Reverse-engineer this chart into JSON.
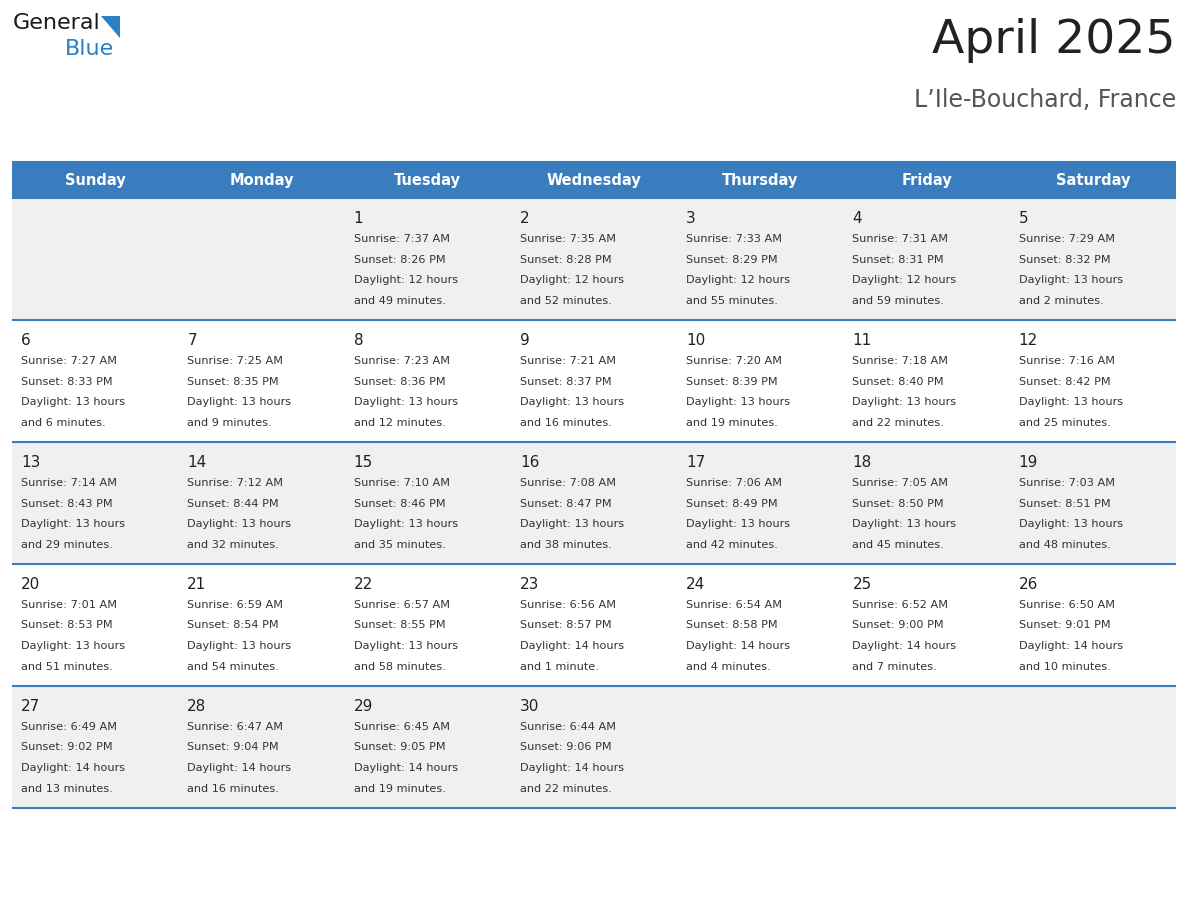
{
  "title": "April 2025",
  "subtitle": "L’Ile-Bouchard, France",
  "header_bg": "#3a7dbf",
  "header_text_color": "#ffffff",
  "day_names": [
    "Sunday",
    "Monday",
    "Tuesday",
    "Wednesday",
    "Thursday",
    "Friday",
    "Saturday"
  ],
  "weeks": [
    [
      {
        "day": "",
        "sunrise": "",
        "sunset": "",
        "daylight": ""
      },
      {
        "day": "",
        "sunrise": "",
        "sunset": "",
        "daylight": ""
      },
      {
        "day": "1",
        "sunrise": "7:37 AM",
        "sunset": "8:26 PM",
        "daylight": "12 hours\nand 49 minutes."
      },
      {
        "day": "2",
        "sunrise": "7:35 AM",
        "sunset": "8:28 PM",
        "daylight": "12 hours\nand 52 minutes."
      },
      {
        "day": "3",
        "sunrise": "7:33 AM",
        "sunset": "8:29 PM",
        "daylight": "12 hours\nand 55 minutes."
      },
      {
        "day": "4",
        "sunrise": "7:31 AM",
        "sunset": "8:31 PM",
        "daylight": "12 hours\nand 59 minutes."
      },
      {
        "day": "5",
        "sunrise": "7:29 AM",
        "sunset": "8:32 PM",
        "daylight": "13 hours\nand 2 minutes."
      }
    ],
    [
      {
        "day": "6",
        "sunrise": "7:27 AM",
        "sunset": "8:33 PM",
        "daylight": "13 hours\nand 6 minutes."
      },
      {
        "day": "7",
        "sunrise": "7:25 AM",
        "sunset": "8:35 PM",
        "daylight": "13 hours\nand 9 minutes."
      },
      {
        "day": "8",
        "sunrise": "7:23 AM",
        "sunset": "8:36 PM",
        "daylight": "13 hours\nand 12 minutes."
      },
      {
        "day": "9",
        "sunrise": "7:21 AM",
        "sunset": "8:37 PM",
        "daylight": "13 hours\nand 16 minutes."
      },
      {
        "day": "10",
        "sunrise": "7:20 AM",
        "sunset": "8:39 PM",
        "daylight": "13 hours\nand 19 minutes."
      },
      {
        "day": "11",
        "sunrise": "7:18 AM",
        "sunset": "8:40 PM",
        "daylight": "13 hours\nand 22 minutes."
      },
      {
        "day": "12",
        "sunrise": "7:16 AM",
        "sunset": "8:42 PM",
        "daylight": "13 hours\nand 25 minutes."
      }
    ],
    [
      {
        "day": "13",
        "sunrise": "7:14 AM",
        "sunset": "8:43 PM",
        "daylight": "13 hours\nand 29 minutes."
      },
      {
        "day": "14",
        "sunrise": "7:12 AM",
        "sunset": "8:44 PM",
        "daylight": "13 hours\nand 32 minutes."
      },
      {
        "day": "15",
        "sunrise": "7:10 AM",
        "sunset": "8:46 PM",
        "daylight": "13 hours\nand 35 minutes."
      },
      {
        "day": "16",
        "sunrise": "7:08 AM",
        "sunset": "8:47 PM",
        "daylight": "13 hours\nand 38 minutes."
      },
      {
        "day": "17",
        "sunrise": "7:06 AM",
        "sunset": "8:49 PM",
        "daylight": "13 hours\nand 42 minutes."
      },
      {
        "day": "18",
        "sunrise": "7:05 AM",
        "sunset": "8:50 PM",
        "daylight": "13 hours\nand 45 minutes."
      },
      {
        "day": "19",
        "sunrise": "7:03 AM",
        "sunset": "8:51 PM",
        "daylight": "13 hours\nand 48 minutes."
      }
    ],
    [
      {
        "day": "20",
        "sunrise": "7:01 AM",
        "sunset": "8:53 PM",
        "daylight": "13 hours\nand 51 minutes."
      },
      {
        "day": "21",
        "sunrise": "6:59 AM",
        "sunset": "8:54 PM",
        "daylight": "13 hours\nand 54 minutes."
      },
      {
        "day": "22",
        "sunrise": "6:57 AM",
        "sunset": "8:55 PM",
        "daylight": "13 hours\nand 58 minutes."
      },
      {
        "day": "23",
        "sunrise": "6:56 AM",
        "sunset": "8:57 PM",
        "daylight": "14 hours\nand 1 minute."
      },
      {
        "day": "24",
        "sunrise": "6:54 AM",
        "sunset": "8:58 PM",
        "daylight": "14 hours\nand 4 minutes."
      },
      {
        "day": "25",
        "sunrise": "6:52 AM",
        "sunset": "9:00 PM",
        "daylight": "14 hours\nand 7 minutes."
      },
      {
        "day": "26",
        "sunrise": "6:50 AM",
        "sunset": "9:01 PM",
        "daylight": "14 hours\nand 10 minutes."
      }
    ],
    [
      {
        "day": "27",
        "sunrise": "6:49 AM",
        "sunset": "9:02 PM",
        "daylight": "14 hours\nand 13 minutes."
      },
      {
        "day": "28",
        "sunrise": "6:47 AM",
        "sunset": "9:04 PM",
        "daylight": "14 hours\nand 16 minutes."
      },
      {
        "day": "29",
        "sunrise": "6:45 AM",
        "sunset": "9:05 PM",
        "daylight": "14 hours\nand 19 minutes."
      },
      {
        "day": "30",
        "sunrise": "6:44 AM",
        "sunset": "9:06 PM",
        "daylight": "14 hours\nand 22 minutes."
      },
      {
        "day": "",
        "sunrise": "",
        "sunset": "",
        "daylight": ""
      },
      {
        "day": "",
        "sunrise": "",
        "sunset": "",
        "daylight": ""
      },
      {
        "day": "",
        "sunrise": "",
        "sunset": "",
        "daylight": ""
      }
    ]
  ],
  "row_bg_colors": [
    "#f0f0f0",
    "#ffffff",
    "#f0f0f0",
    "#ffffff",
    "#f0f0f0"
  ],
  "border_color": "#3a7dbf",
  "day_num_color": "#222222",
  "general_text": "#333333",
  "logo_general_color": "#1a1a1a",
  "logo_blue_color": "#2980c4",
  "title_color": "#222222",
  "subtitle_color": "#555555"
}
